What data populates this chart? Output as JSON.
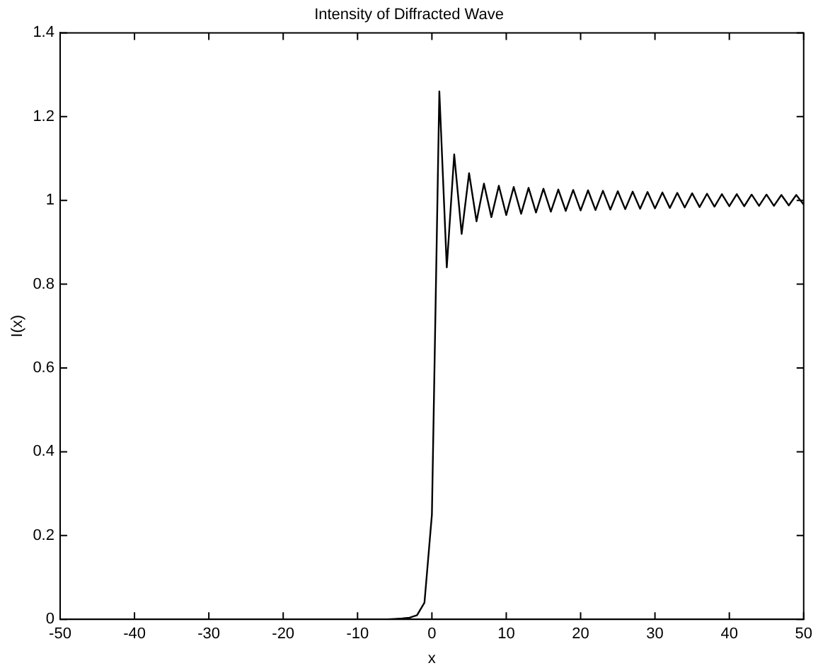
{
  "chart_data": {
    "type": "line",
    "title": "Intensity of Diffracted Wave",
    "xlabel": "x",
    "ylabel": "I(x)",
    "xlim": [
      -50,
      50
    ],
    "xticks": [
      -50,
      -40,
      -30,
      -20,
      -10,
      0,
      10,
      20,
      30,
      40,
      50
    ],
    "ylim": [
      0,
      1.4
    ],
    "yticks": [
      0,
      0.2,
      0.4,
      0.6,
      0.8,
      1,
      1.2,
      1.4
    ],
    "grid": false,
    "legend": false,
    "marker": "none",
    "line_style": "solid",
    "series": [
      {
        "color": "#000000",
        "x": [
          -50,
          -45,
          -40,
          -35,
          -30,
          -25,
          -20,
          -15,
          -10,
          -8,
          -6,
          -5,
          -4,
          -3,
          -2,
          -1,
          0,
          1,
          2,
          3,
          4,
          5,
          6,
          7,
          8,
          9,
          10,
          11,
          12,
          13,
          14,
          15,
          16,
          17,
          18,
          19,
          20,
          21,
          22,
          23,
          24,
          25,
          26,
          27,
          28,
          29,
          30,
          31,
          32,
          33,
          34,
          35,
          36,
          37,
          38,
          39,
          40,
          41,
          42,
          43,
          44,
          45,
          46,
          47,
          48,
          49,
          50
        ],
        "values": [
          0,
          0,
          0,
          0,
          0,
          0,
          0,
          0,
          0,
          0,
          0,
          0.001,
          0.002,
          0.004,
          0.01,
          0.04,
          0.25,
          1.26,
          0.84,
          1.11,
          0.92,
          1.065,
          0.95,
          1.04,
          0.96,
          1.035,
          0.965,
          1.032,
          0.968,
          1.03,
          0.971,
          1.028,
          0.973,
          1.026,
          0.975,
          1.025,
          0.976,
          1.024,
          0.977,
          1.023,
          0.978,
          1.022,
          0.979,
          1.021,
          0.98,
          1.02,
          0.981,
          1.019,
          0.982,
          1.018,
          0.983,
          1.017,
          0.984,
          1.016,
          0.985,
          1.015,
          0.986,
          1.015,
          0.986,
          1.014,
          0.987,
          1.014,
          0.987,
          1.013,
          0.988,
          1.013,
          0.99
        ]
      }
    ]
  }
}
